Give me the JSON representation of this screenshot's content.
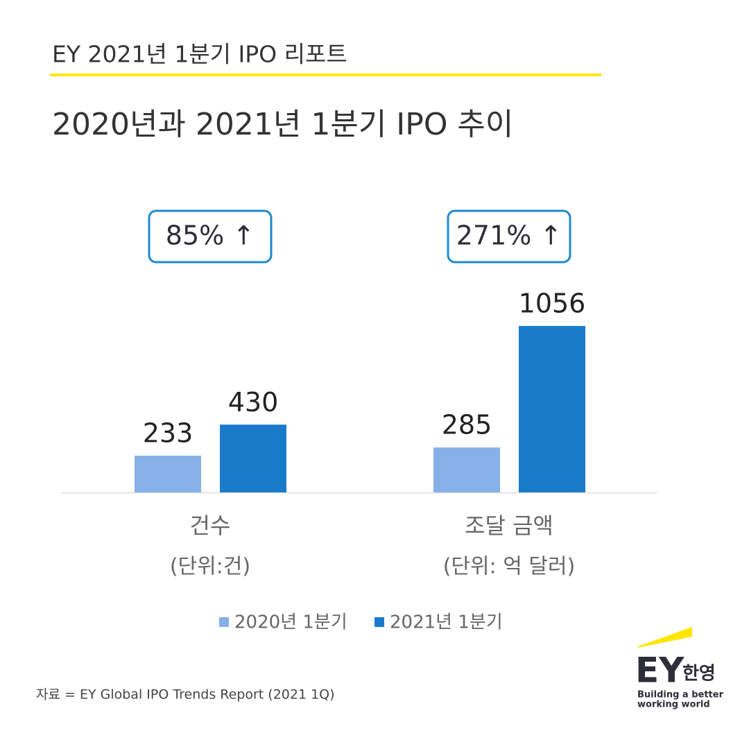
{
  "header": "EY 2021년 1분기 IPO 리포트",
  "chart_data": {
    "type": "bar",
    "title": "2020년과 2021년 1분기 IPO 추이",
    "categories": [
      "건수",
      "조달 금액"
    ],
    "category_units": [
      "(단위:건)",
      "(단위: 억 달러)"
    ],
    "annotations": [
      "85% ↑",
      "271% ↑"
    ],
    "series": [
      {
        "name": "2020년 1분기",
        "color": "#86b0e8",
        "values": [
          233,
          285
        ]
      },
      {
        "name": "2021년 1분기",
        "color": "#1a7bcb",
        "values": [
          430,
          1056
        ]
      }
    ]
  },
  "source": "자료 = EY Global IPO Trends Report (2021 1Q)",
  "logo": {
    "mark": "EY",
    "name": "한영",
    "tagline": [
      "Building a better",
      "working world"
    ]
  }
}
